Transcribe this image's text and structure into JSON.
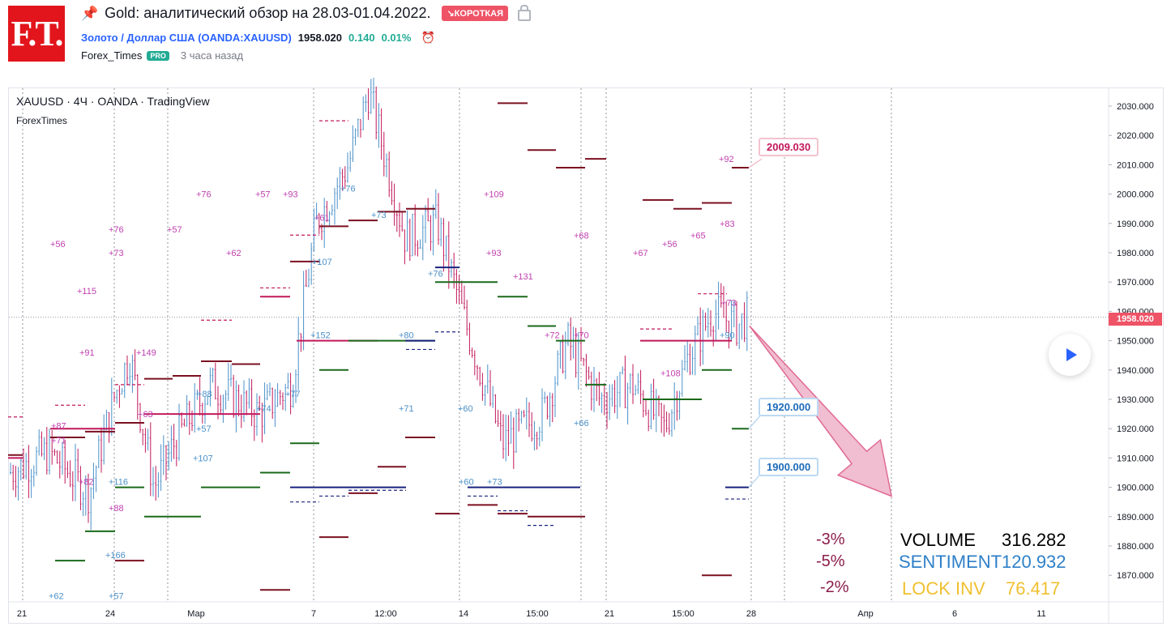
{
  "header": {
    "logo_text": "F.T.",
    "title": "Gold: аналитический обзор на 28.03-01.04.2022.",
    "badge": "↘КОРОТКАЯ",
    "symbol_link": "Золото / Доллар США (OANDA:XAUUSD)",
    "price": "1958.020",
    "change": "0.140",
    "change_pct": "0.01%",
    "author": "Forex_Times",
    "author_badge": "PRO",
    "time_ago": "3 часа назад"
  },
  "chart_labels": {
    "symbol_line": "XAUUSD · 4Ч · OANDA · TradingView",
    "sub_label": "ForexTimes",
    "current_price_tag": "1958.020"
  },
  "callouts": {
    "target_high": "2009.030",
    "target_mid": "1920.000",
    "target_low": "1900.000"
  },
  "stats": {
    "pct1": "-3%",
    "pct2": "-5%",
    "pct3": "-2%",
    "volume_label": "VOLUME",
    "volume_value": "316.282",
    "sentiment_label": "SENTIMENT",
    "sentiment_value": "120.932",
    "lock_label": "LOCK INV",
    "lock_value": "76.417"
  },
  "colors": {
    "short_badge": "#ef5366",
    "link": "#2962ff",
    "positive": "#22ab94",
    "bull_candle": "#4a90c8",
    "bear_candle": "#c2185b",
    "arrow": "#e891b0",
    "volume_color": "#000000",
    "sentiment_color": "#2f80c8",
    "lock_color": "#f0c030"
  },
  "chart_data": {
    "type": "candlestick",
    "symbol": "XAUUSD",
    "timeframe": "4Ч",
    "ylim": [
      1860,
      2040
    ],
    "y_ticks": [
      "2030.000",
      "2020.000",
      "2010.000",
      "2000.000",
      "1990.000",
      "1980.000",
      "1970.000",
      "1960.000",
      "1950.000",
      "1940.000",
      "1930.000",
      "1920.000",
      "1910.000",
      "1900.000",
      "1890.000",
      "1880.000",
      "1870.000"
    ],
    "x_ticks": [
      "21",
      "24",
      "Мар",
      "7",
      "12:00",
      "14",
      "15:00",
      "21",
      "15:00",
      "28",
      "Апр",
      "6",
      "11"
    ],
    "last_price": 1958.02,
    "forecast_arrow": {
      "from": 1955,
      "to": 1897
    },
    "levels": [
      2009.03,
      1920.0,
      1900.0
    ],
    "annotations": [
      "+56",
      "+115",
      "+91",
      "+87",
      "+71",
      "+76",
      "+73",
      "+57",
      "+149",
      "+63",
      "+62",
      "+88",
      "+57",
      "+107",
      "+76",
      "+57",
      "+93",
      "+61",
      "+76",
      "+73",
      "+107",
      "+152",
      "+74",
      "+77",
      "+80",
      "+76",
      "+71",
      "+60",
      "+116",
      "+166",
      "+82",
      "+88",
      "+109",
      "+93",
      "+131",
      "+68",
      "+72",
      "+70",
      "+66",
      "+60",
      "+73",
      "+67",
      "+56",
      "+65",
      "+83",
      "+92",
      "+73",
      "+90",
      "+108",
      "+62",
      "+57"
    ]
  }
}
